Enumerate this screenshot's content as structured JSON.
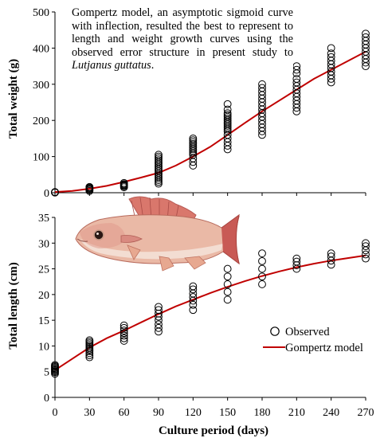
{
  "annotation": {
    "text": "Gompertz model, an asymptotic sigmoid curve with inflection, resulted the best to represent to length and weight growth curves using the observed error structure in present study to ",
    "species": "Lutjanus guttatus",
    "end": "."
  },
  "colors": {
    "model_line": "#c00000",
    "observed_marker": "#000000",
    "fish_body": "#e9b8a4",
    "fish_fins": "#c85a55"
  },
  "icons": {
    "fish": "red-snapper-fish-illustration"
  },
  "chart_data": [
    {
      "type": "scatter",
      "ylabel": "Total weight (g)",
      "ylim": [
        0,
        500
      ],
      "yticks": [
        0,
        100,
        200,
        300,
        400,
        500
      ],
      "xlim": [
        0,
        270
      ],
      "xticks": [
        0,
        30,
        60,
        90,
        120,
        150,
        180,
        210,
        240,
        270
      ],
      "observed": [
        {
          "x": 0,
          "y": [
            0.5,
            1,
            1.5,
            2
          ]
        },
        {
          "x": 30,
          "y": [
            5,
            8,
            10,
            12,
            14,
            16
          ]
        },
        {
          "x": 60,
          "y": [
            15,
            18,
            20,
            22,
            24,
            27
          ]
        },
        {
          "x": 90,
          "y": [
            25,
            30,
            35,
            40,
            45,
            50,
            55,
            60,
            65,
            70,
            75,
            80,
            85,
            90,
            95,
            100,
            105
          ]
        },
        {
          "x": 120,
          "y": [
            75,
            85,
            95,
            105,
            110,
            115,
            120,
            125,
            130,
            135,
            140,
            145,
            150
          ]
        },
        {
          "x": 150,
          "y": [
            120,
            130,
            140,
            150,
            160,
            170,
            175,
            180,
            185,
            190,
            195,
            200,
            205,
            210,
            215,
            220,
            230,
            245
          ]
        },
        {
          "x": 180,
          "y": [
            160,
            170,
            180,
            190,
            200,
            210,
            220,
            230,
            240,
            250,
            260,
            270,
            280,
            290,
            300
          ]
        },
        {
          "x": 210,
          "y": [
            225,
            235,
            245,
            255,
            265,
            275,
            285,
            295,
            305,
            315,
            330,
            340,
            350
          ]
        },
        {
          "x": 240,
          "y": [
            305,
            315,
            325,
            335,
            345,
            355,
            365,
            375,
            385,
            400
          ]
        },
        {
          "x": 270,
          "y": [
            350,
            360,
            370,
            380,
            390,
            400,
            410,
            420,
            430,
            440
          ]
        }
      ],
      "model": {
        "x": [
          0,
          15,
          30,
          45,
          60,
          75,
          90,
          105,
          120,
          135,
          150,
          165,
          180,
          195,
          210,
          225,
          240,
          255,
          270
        ],
        "y": [
          2,
          5,
          11,
          19,
          30,
          42,
          55,
          75,
          100,
          127,
          160,
          193,
          225,
          255,
          285,
          315,
          340,
          365,
          390
        ]
      }
    },
    {
      "type": "scatter",
      "xlabel": "Culture period (days)",
      "ylabel": "Total length (cm)",
      "ylim": [
        0,
        35
      ],
      "yticks": [
        0,
        5,
        10,
        15,
        20,
        25,
        30,
        35
      ],
      "xlim": [
        0,
        270
      ],
      "xticks": [
        0,
        30,
        60,
        90,
        120,
        150,
        180,
        210,
        240,
        270
      ],
      "legend": {
        "position": "lower-right",
        "entries": [
          "Observed",
          "Gompertz model"
        ]
      },
      "observed": [
        {
          "x": 0,
          "y": [
            4.6,
            4.9,
            5.1,
            5.3,
            5.5,
            5.7,
            5.9,
            6.1,
            6.3
          ]
        },
        {
          "x": 30,
          "y": [
            7.8,
            8.2,
            8.6,
            9.0,
            9.3,
            9.6,
            9.9,
            10.2,
            10.5,
            10.8,
            11.1
          ]
        },
        {
          "x": 60,
          "y": [
            11.0,
            11.5,
            12.0,
            12.5,
            13.0,
            13.5,
            14.0
          ]
        },
        {
          "x": 90,
          "y": [
            12.8,
            13.5,
            14.2,
            15.0,
            15.7,
            16.3,
            17.0,
            17.6
          ]
        },
        {
          "x": 120,
          "y": [
            17.0,
            18.0,
            18.8,
            19.5,
            20.2,
            21.0,
            21.6
          ]
        },
        {
          "x": 150,
          "y": [
            19.0,
            20.5,
            22.0,
            23.5,
            25.0
          ]
        },
        {
          "x": 180,
          "y": [
            22.0,
            23.5,
            25.0,
            26.5,
            28.0
          ]
        },
        {
          "x": 210,
          "y": [
            25.0,
            25.7,
            26.4,
            27.0
          ]
        },
        {
          "x": 240,
          "y": [
            25.8,
            26.6,
            27.4,
            28.0
          ]
        },
        {
          "x": 270,
          "y": [
            27.0,
            27.8,
            28.6,
            29.4,
            30.0
          ]
        }
      ],
      "model": {
        "x": [
          0,
          15,
          30,
          45,
          60,
          75,
          90,
          105,
          120,
          135,
          150,
          165,
          180,
          195,
          210,
          225,
          240,
          255,
          270
        ],
        "y": [
          5.3,
          7.5,
          9.7,
          11.5,
          13.0,
          14.6,
          16.2,
          17.7,
          19.0,
          20.3,
          21.5,
          22.6,
          23.6,
          24.5,
          25.3,
          26.0,
          26.6,
          27.1,
          27.6
        ]
      }
    }
  ]
}
